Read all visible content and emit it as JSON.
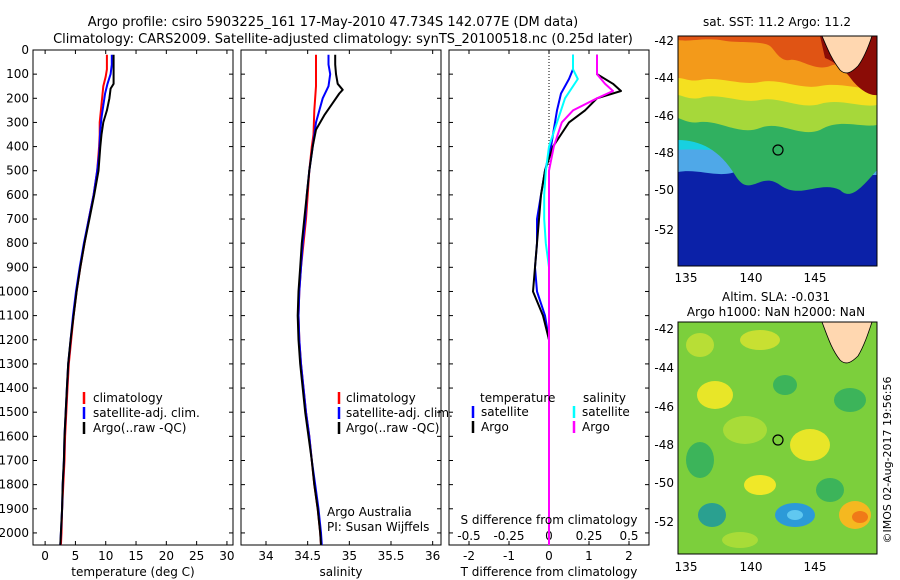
{
  "header": {
    "title_line1": "Argo profile: csiro 5903225_161 17-May-2010 47.734S 142.077E (DM data)",
    "title_line2": "Climatology: CARS2009. Satellite-adjusted climatology: synTS_20100518.nc (0.25d later)"
  },
  "chart_data": [
    {
      "type": "line",
      "panel": "temperature",
      "xlabel": "temperature (deg C)",
      "ylabel": "",
      "xlim": [
        -2,
        31
      ],
      "ylim": [
        2050,
        0
      ],
      "xticks": [
        0,
        5,
        10,
        15,
        20,
        25,
        30
      ],
      "yticks": [
        0,
        100,
        200,
        300,
        400,
        500,
        600,
        700,
        800,
        900,
        1000,
        1100,
        1200,
        1300,
        1400,
        1500,
        1600,
        1700,
        1800,
        1900,
        2000
      ],
      "legend_position": "lower-center",
      "series": [
        {
          "name": "climatology",
          "color": "#ff0000",
          "points": [
            [
              10.2,
              20
            ],
            [
              10.2,
              80
            ],
            [
              10.0,
              110
            ],
            [
              9.6,
              150
            ],
            [
              9.4,
              200
            ],
            [
              9.2,
              250
            ],
            [
              9.0,
              300
            ],
            [
              9.0,
              350
            ],
            [
              8.9,
              400
            ],
            [
              8.6,
              500
            ],
            [
              8.0,
              600
            ],
            [
              7.2,
              700
            ],
            [
              6.5,
              800
            ],
            [
              5.8,
              900
            ],
            [
              5.2,
              1000
            ],
            [
              4.7,
              1100
            ],
            [
              4.3,
              1200
            ],
            [
              3.9,
              1300
            ],
            [
              3.7,
              1400
            ],
            [
              3.5,
              1500
            ],
            [
              3.3,
              1600
            ],
            [
              3.2,
              1700
            ],
            [
              3.0,
              1800
            ],
            [
              2.8,
              1900
            ],
            [
              2.7,
              2000
            ],
            [
              2.6,
              2050
            ]
          ]
        },
        {
          "name": "satellite-adj. clim.",
          "color": "#0000ff",
          "points": [
            [
              11.0,
              20
            ],
            [
              11.0,
              60
            ],
            [
              10.8,
              100
            ],
            [
              10.3,
              140
            ],
            [
              9.9,
              180
            ],
            [
              9.6,
              230
            ],
            [
              9.3,
              280
            ],
            [
              9.1,
              330
            ],
            [
              9.0,
              380
            ],
            [
              8.9,
              430
            ],
            [
              8.6,
              500
            ],
            [
              8.0,
              600
            ],
            [
              7.2,
              700
            ],
            [
              6.4,
              800
            ],
            [
              5.7,
              900
            ],
            [
              5.1,
              1000
            ],
            [
              4.6,
              1100
            ],
            [
              4.2,
              1200
            ],
            [
              3.8,
              1300
            ],
            [
              3.6,
              1400
            ],
            [
              3.4,
              1500
            ],
            [
              3.2,
              1600
            ],
            [
              3.1,
              1700
            ],
            [
              2.9,
              1800
            ],
            [
              2.8,
              1900
            ],
            [
              2.6,
              2000
            ],
            [
              2.5,
              2050
            ]
          ]
        },
        {
          "name": "Argo(..raw -QC)",
          "color": "#000000",
          "points": [
            [
              11.3,
              20
            ],
            [
              11.3,
              100
            ],
            [
              11.3,
              140
            ],
            [
              10.8,
              160
            ],
            [
              10.6,
              200
            ],
            [
              10.2,
              250
            ],
            [
              9.6,
              300
            ],
            [
              9.3,
              350
            ],
            [
              9.1,
              400
            ],
            [
              8.8,
              500
            ],
            [
              8.1,
              600
            ],
            [
              7.3,
              700
            ],
            [
              6.5,
              800
            ],
            [
              5.8,
              900
            ],
            [
              5.2,
              1000
            ],
            [
              4.7,
              1100
            ],
            [
              4.2,
              1200
            ],
            [
              3.8,
              1300
            ],
            [
              3.6,
              1400
            ],
            [
              3.4,
              1500
            ],
            [
              3.2,
              1600
            ],
            [
              3.1,
              1700
            ],
            [
              2.9,
              1800
            ],
            [
              2.8,
              1900
            ],
            [
              2.6,
              2000
            ],
            [
              2.5,
              2050
            ]
          ]
        }
      ]
    },
    {
      "type": "line",
      "panel": "salinity",
      "xlabel": "salinity",
      "xlim": [
        33.7,
        36.1
      ],
      "ylim": [
        2050,
        0
      ],
      "xticks": [
        34,
        34.5,
        35,
        35.5,
        36
      ],
      "legend_position": "lower-center",
      "series": [
        {
          "name": "climatology",
          "color": "#ff0000",
          "points": [
            [
              34.6,
              20
            ],
            [
              34.6,
              60
            ],
            [
              34.6,
              100
            ],
            [
              34.6,
              150
            ],
            [
              34.58,
              250
            ],
            [
              34.57,
              350
            ],
            [
              34.55,
              400
            ],
            [
              34.52,
              500
            ],
            [
              34.5,
              600
            ],
            [
              34.48,
              700
            ],
            [
              34.45,
              800
            ],
            [
              34.42,
              900
            ],
            [
              34.4,
              1000
            ],
            [
              34.39,
              1100
            ],
            [
              34.4,
              1200
            ],
            [
              34.42,
              1300
            ],
            [
              34.45,
              1400
            ],
            [
              34.48,
              1500
            ],
            [
              34.52,
              1600
            ],
            [
              34.55,
              1700
            ],
            [
              34.58,
              1800
            ],
            [
              34.62,
              1900
            ],
            [
              34.65,
              2000
            ],
            [
              34.66,
              2050
            ]
          ]
        },
        {
          "name": "satellite-adj. clim.",
          "color": "#0000ff",
          "points": [
            [
              34.75,
              20
            ],
            [
              34.75,
              60
            ],
            [
              34.77,
              100
            ],
            [
              34.75,
              150
            ],
            [
              34.68,
              200
            ],
            [
              34.6,
              300
            ],
            [
              34.56,
              400
            ],
            [
              34.52,
              500
            ],
            [
              34.49,
              600
            ],
            [
              34.47,
              700
            ],
            [
              34.44,
              800
            ],
            [
              34.42,
              900
            ],
            [
              34.4,
              1000
            ],
            [
              34.39,
              1100
            ],
            [
              34.4,
              1200
            ],
            [
              34.42,
              1300
            ],
            [
              34.45,
              1400
            ],
            [
              34.48,
              1500
            ],
            [
              34.52,
              1600
            ],
            [
              34.55,
              1700
            ],
            [
              34.59,
              1800
            ],
            [
              34.63,
              1900
            ],
            [
              34.66,
              2000
            ],
            [
              34.67,
              2050
            ]
          ]
        },
        {
          "name": "Argo(..raw -QC)",
          "color": "#000000",
          "points": [
            [
              34.83,
              20
            ],
            [
              34.83,
              60
            ],
            [
              34.84,
              100
            ],
            [
              34.86,
              140
            ],
            [
              34.92,
              165
            ],
            [
              34.88,
              180
            ],
            [
              34.8,
              220
            ],
            [
              34.7,
              270
            ],
            [
              34.6,
              330
            ],
            [
              34.56,
              400
            ],
            [
              34.52,
              500
            ],
            [
              34.49,
              600
            ],
            [
              34.46,
              700
            ],
            [
              34.43,
              800
            ],
            [
              34.41,
              900
            ],
            [
              34.39,
              1000
            ],
            [
              34.38,
              1100
            ],
            [
              34.39,
              1200
            ],
            [
              34.41,
              1300
            ],
            [
              34.44,
              1400
            ],
            [
              34.47,
              1500
            ],
            [
              34.51,
              1600
            ],
            [
              34.55,
              1700
            ],
            [
              34.58,
              1800
            ],
            [
              34.62,
              1900
            ],
            [
              34.65,
              2000
            ],
            [
              34.66,
              2050
            ]
          ]
        }
      ]
    },
    {
      "type": "line",
      "panel": "difference",
      "xlabel": "T difference from climatology",
      "xlabel_top": "S difference from climatology",
      "xlim": [
        -2.5,
        2.5
      ],
      "ylim": [
        2050,
        0
      ],
      "xticks": [
        -2,
        -1,
        0,
        1,
        2
      ],
      "xticks_s": [
        "-0.5",
        "-0.25",
        "0",
        "0.25",
        "0.5"
      ],
      "xticks_s_values": [
        -0.5,
        -0.25,
        0,
        0.25,
        0.5
      ],
      "legend_position": "lower-center",
      "legend_headers": {
        "temperature": "temperature",
        "salinity": "salinity"
      },
      "series": [
        {
          "name": "satellite",
          "group": "temperature",
          "color": "#0000ff",
          "points": [
            [
              0.6,
              20
            ],
            [
              0.6,
              80
            ],
            [
              0.5,
              120
            ],
            [
              0.3,
              180
            ],
            [
              0.2,
              250
            ],
            [
              0.05,
              400
            ],
            [
              -0.1,
              500
            ],
            [
              -0.2,
              600
            ],
            [
              -0.3,
              700
            ],
            [
              -0.3,
              800
            ],
            [
              -0.35,
              900
            ],
            [
              -0.3,
              1000
            ],
            [
              -0.1,
              1100
            ],
            [
              0.0,
              1200
            ],
            [
              0.0,
              1300
            ],
            [
              0.0,
              1500
            ],
            [
              0.0,
              1700
            ],
            [
              0.0,
              2000
            ],
            [
              0.0,
              2050
            ]
          ]
        },
        {
          "name": "Argo",
          "group": "temperature",
          "color": "#000000",
          "points": [
            [
              1.2,
              20
            ],
            [
              1.2,
              100
            ],
            [
              1.6,
              140
            ],
            [
              1.8,
              170
            ],
            [
              1.2,
              200
            ],
            [
              0.9,
              250
            ],
            [
              0.5,
              300
            ],
            [
              0.3,
              350
            ],
            [
              0.1,
              400
            ],
            [
              0.0,
              450
            ],
            [
              -0.1,
              500
            ],
            [
              -0.2,
              600
            ],
            [
              -0.25,
              700
            ],
            [
              -0.3,
              800
            ],
            [
              -0.35,
              900
            ],
            [
              -0.4,
              1000
            ],
            [
              -0.15,
              1100
            ],
            [
              0.0,
              1200
            ],
            [
              0.0,
              1300
            ],
            [
              0.0,
              1500
            ],
            [
              0.0,
              1700
            ],
            [
              0.0,
              2000
            ],
            [
              0.0,
              2050
            ]
          ]
        },
        {
          "name": "satellite",
          "group": "salinity",
          "color": "#00ffff",
          "points": [
            [
              0.15,
              20
            ],
            [
              0.15,
              80
            ],
            [
              0.18,
              120
            ],
            [
              0.1,
              200
            ],
            [
              0.05,
              300
            ],
            [
              0.0,
              400
            ],
            [
              -0.02,
              500
            ],
            [
              -0.03,
              600
            ],
            [
              -0.03,
              700
            ],
            [
              -0.02,
              800
            ],
            [
              0.0,
              900
            ],
            [
              0.0,
              1000
            ],
            [
              0.0,
              1200
            ],
            [
              0.0,
              1500
            ],
            [
              0.0,
              2000
            ],
            [
              0.0,
              2050
            ]
          ]
        },
        {
          "name": "Argo",
          "group": "salinity",
          "color": "#ff00ff",
          "points": [
            [
              0.3,
              20
            ],
            [
              0.3,
              100
            ],
            [
              0.35,
              140
            ],
            [
              0.4,
              170
            ],
            [
              0.3,
              200
            ],
            [
              0.15,
              250
            ],
            [
              0.08,
              300
            ],
            [
              0.03,
              400
            ],
            [
              0.0,
              500
            ],
            [
              0.0,
              700
            ],
            [
              0.0,
              1000
            ],
            [
              0.0,
              2000
            ],
            [
              0.0,
              2050
            ]
          ]
        }
      ]
    }
  ],
  "footer_notes": {
    "line1": "Argo Australia",
    "line2": "PI: Susan Wijffels"
  },
  "maps": {
    "sst": {
      "title": "sat. SST: 11.2 Argo: 11.2",
      "xticks": [
        "135",
        "140",
        "145"
      ],
      "yticks": [
        "-42",
        "-44",
        "-46",
        "-48",
        "-50",
        "-52"
      ]
    },
    "sla": {
      "title_line1": "Altim. SLA: -0.031",
      "title_line2": "Argo h1000: NaN h2000: NaN",
      "xticks": [
        "135",
        "140",
        "145"
      ],
      "yticks": [
        "-42",
        "-44",
        "-46",
        "-48",
        "-50",
        "-52"
      ]
    }
  },
  "credit": "©IMOS 02-Aug-2017 19:56:56"
}
